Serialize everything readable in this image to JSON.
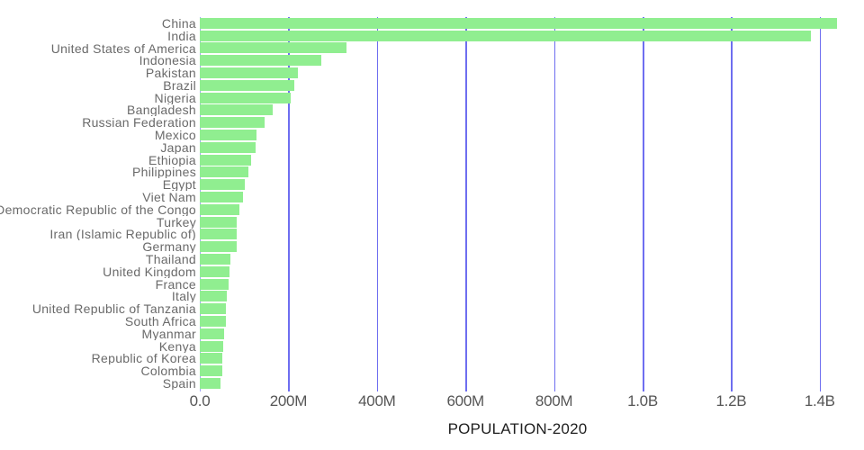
{
  "chart_data": {
    "type": "bar",
    "orientation": "horizontal",
    "title": "",
    "xlabel": "POPULATION-2020",
    "ylabel": "",
    "xlim": [
      0,
      1500000000
    ],
    "grid": "vertical",
    "legend": "none",
    "sort": "descending",
    "categories": [
      "China",
      "India",
      "United States of America",
      "Indonesia",
      "Pakistan",
      "Brazil",
      "Nigeria",
      "Bangladesh",
      "Russian Federation",
      "Mexico",
      "Japan",
      "Ethiopia",
      "Philippines",
      "Egypt",
      "Viet Nam",
      "Democratic Republic of the Congo",
      "Turkey",
      "Iran (Islamic Republic of)",
      "Germany",
      "Thailand",
      "United Kingdom",
      "France",
      "Italy",
      "United Republic of Tanzania",
      "South Africa",
      "Myanmar",
      "Kenya",
      "Republic of Korea",
      "Colombia",
      "Spain"
    ],
    "values": [
      1439323776,
      1380004385,
      331002651,
      273523615,
      220892340,
      212559417,
      206139589,
      164689383,
      145934462,
      128932753,
      126476461,
      114963588,
      109581078,
      102334404,
      97338579,
      89561403,
      84339067,
      83992949,
      83783942,
      69799978,
      67886011,
      65273511,
      60461826,
      59734218,
      59308690,
      54409800,
      53771296,
      51269185,
      50882891,
      46754778
    ],
    "x_ticks": [
      {
        "value": 0,
        "label": "0.0"
      },
      {
        "value": 200000000,
        "label": "200M"
      },
      {
        "value": 400000000,
        "label": "400M"
      },
      {
        "value": 600000000,
        "label": "600M"
      },
      {
        "value": 800000000,
        "label": "800M"
      },
      {
        "value": 1000000000,
        "label": "1.0B"
      },
      {
        "value": 1200000000,
        "label": "1.2B"
      },
      {
        "value": 1400000000,
        "label": "1.4B"
      }
    ]
  },
  "colors": {
    "background": "#ffffff",
    "bar": "#90ee90",
    "gridline": "#6e6ef0",
    "zero_line": "#a3a3f5",
    "category_label": "#6a6a6a",
    "tick_label": "#565656",
    "axis_title": "#1f1f1f"
  }
}
